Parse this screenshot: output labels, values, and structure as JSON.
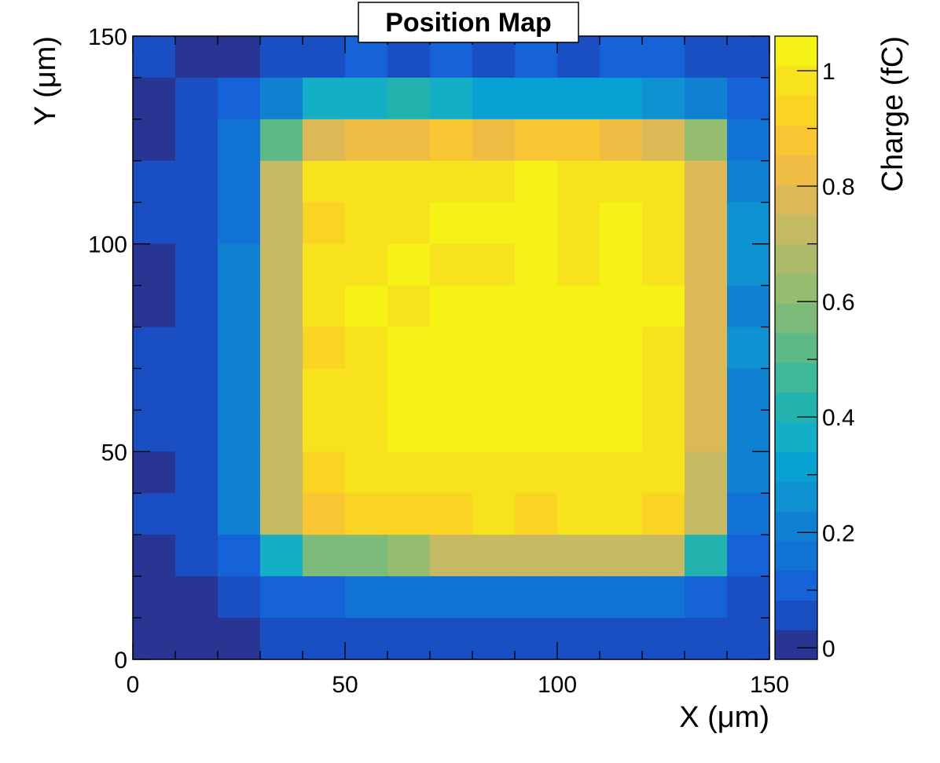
{
  "chart_data": {
    "type": "heatmap",
    "title": "Position Map",
    "xlabel": "X (μm)",
    "ylabel": "Y (μm)",
    "zlabel": "Charge (fC)",
    "xlim": [
      0,
      150
    ],
    "ylim": [
      0,
      150
    ],
    "zlim": [
      -0.02,
      1.06
    ],
    "x_ticks": [
      0,
      50,
      100,
      150
    ],
    "y_ticks": [
      0,
      50,
      100,
      150
    ],
    "z_ticks": [
      0,
      0.2,
      0.4,
      0.6,
      0.8,
      1
    ],
    "x_tick_labels": [
      "0",
      "50",
      "100",
      "150"
    ],
    "y_tick_labels": [
      "0",
      "50",
      "100",
      "150"
    ],
    "z_tick_labels": [
      "0",
      "0.2",
      "0.4",
      "0.6",
      "0.8",
      "1"
    ],
    "bin_width": 10,
    "colormap": "parula",
    "palette": [
      "#283593",
      "#1a4fc3",
      "#1662d8",
      "#1173d6",
      "#1080d3",
      "#0e92d2",
      "#08a1d3",
      "#14aec6",
      "#22b3af",
      "#3db89b",
      "#5dba87",
      "#7cbb79",
      "#94bd70",
      "#adbc6a",
      "#c6b964",
      "#dcb856",
      "#efbd43",
      "#f8c632",
      "#fbd423",
      "#f8e21e",
      "#f6f216"
    ],
    "grid": false,
    "legend": "colorbar-right",
    "rows_y_start": [
      140,
      130,
      120,
      110,
      100,
      90,
      80,
      70,
      60,
      50,
      40,
      30,
      20,
      10,
      0
    ],
    "x_bins_start": [
      0,
      10,
      20,
      30,
      40,
      50,
      60,
      70,
      80,
      90,
      100,
      110,
      120,
      130,
      140
    ],
    "values": [
      [
        0.08,
        0.01,
        0.01,
        0.08,
        0.08,
        0.13,
        0.08,
        0.13,
        0.08,
        0.13,
        0.08,
        0.13,
        0.13,
        0.08,
        0.08
      ],
      [
        0.01,
        0.08,
        0.13,
        0.22,
        0.38,
        0.38,
        0.43,
        0.38,
        0.33,
        0.33,
        0.33,
        0.33,
        0.27,
        0.22,
        0.13
      ],
      [
        0.01,
        0.08,
        0.18,
        0.53,
        0.8,
        0.84,
        0.84,
        0.89,
        0.84,
        0.89,
        0.89,
        0.84,
        0.8,
        0.64,
        0.18
      ],
      [
        0.08,
        0.08,
        0.18,
        0.7,
        0.98,
        0.98,
        0.98,
        0.98,
        0.98,
        1.05,
        0.98,
        0.98,
        0.98,
        0.8,
        0.22
      ],
      [
        0.08,
        0.08,
        0.18,
        0.7,
        0.93,
        0.98,
        0.98,
        1.05,
        1.05,
        1.05,
        0.98,
        1.05,
        0.98,
        0.8,
        0.27
      ],
      [
        0.01,
        0.08,
        0.22,
        0.7,
        0.98,
        0.98,
        1.05,
        0.98,
        0.98,
        1.05,
        0.98,
        1.05,
        0.98,
        0.8,
        0.27
      ],
      [
        0.01,
        0.08,
        0.22,
        0.7,
        0.98,
        1.05,
        0.98,
        1.05,
        1.05,
        1.05,
        1.05,
        1.05,
        1.05,
        0.8,
        0.22
      ],
      [
        0.08,
        0.08,
        0.22,
        0.7,
        0.93,
        0.98,
        1.05,
        1.05,
        1.05,
        1.05,
        1.05,
        1.05,
        0.98,
        0.8,
        0.27
      ],
      [
        0.08,
        0.08,
        0.22,
        0.75,
        0.98,
        0.98,
        1.05,
        1.05,
        1.05,
        1.05,
        1.05,
        1.05,
        0.98,
        0.8,
        0.22
      ],
      [
        0.08,
        0.08,
        0.22,
        0.75,
        0.98,
        0.98,
        1.05,
        1.05,
        1.05,
        1.05,
        1.05,
        1.05,
        0.98,
        0.8,
        0.22
      ],
      [
        0.01,
        0.08,
        0.22,
        0.75,
        0.93,
        0.98,
        0.98,
        0.98,
        0.98,
        0.98,
        0.98,
        0.98,
        0.98,
        0.75,
        0.22
      ],
      [
        0.08,
        0.08,
        0.22,
        0.7,
        0.89,
        0.93,
        0.93,
        0.93,
        0.98,
        0.93,
        0.98,
        0.98,
        0.93,
        0.7,
        0.18
      ],
      [
        0.01,
        0.08,
        0.13,
        0.38,
        0.58,
        0.58,
        0.64,
        0.7,
        0.7,
        0.7,
        0.7,
        0.7,
        0.7,
        0.43,
        0.13
      ],
      [
        0.01,
        0.01,
        0.08,
        0.13,
        0.13,
        0.18,
        0.18,
        0.18,
        0.18,
        0.18,
        0.18,
        0.18,
        0.18,
        0.13,
        0.08
      ],
      [
        0.01,
        0.01,
        0.01,
        0.08,
        0.08,
        0.08,
        0.08,
        0.08,
        0.08,
        0.08,
        0.08,
        0.08,
        0.08,
        0.08,
        0.08
      ]
    ]
  }
}
